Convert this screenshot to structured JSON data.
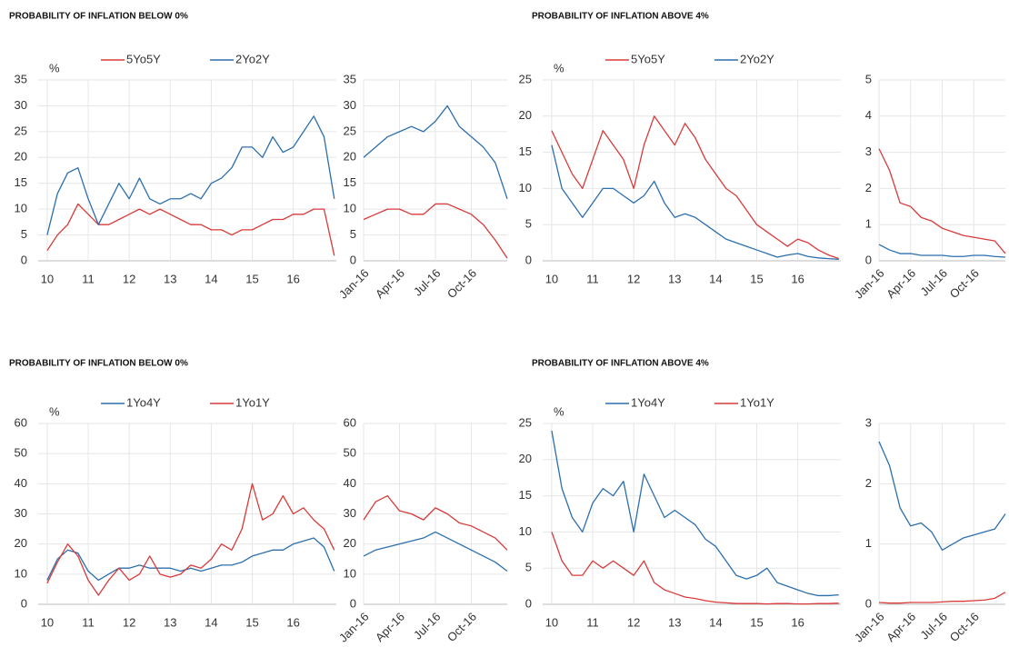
{
  "chart_data": [
    {
      "type": "line",
      "title": "PROBABILITY OF INFLATION BELOW 0%",
      "y_label": "%",
      "legend": "top",
      "grid": true,
      "x": [
        10,
        10.25,
        10.5,
        10.75,
        11,
        11.25,
        11.5,
        11.75,
        12,
        12.25,
        12.5,
        12.75,
        13,
        13.25,
        13.5,
        13.75,
        14,
        14.25,
        14.5,
        14.75,
        15,
        15.25,
        15.5,
        15.75,
        16,
        16.25,
        16.5,
        16.75,
        17
      ],
      "xlim": [
        9.78,
        17.05
      ],
      "xticks": [
        10,
        11,
        12,
        13,
        14,
        15,
        16
      ],
      "ylim": [
        0,
        35
      ],
      "yticks": [
        0,
        5,
        10,
        15,
        20,
        25,
        30,
        35
      ],
      "series": [
        {
          "name": "5Yo5Y",
          "color": "#d93a3a",
          "values": [
            2,
            5,
            7,
            11,
            9,
            7,
            7,
            8,
            9,
            10,
            9,
            10,
            9,
            8,
            7,
            7,
            6,
            6,
            5,
            6,
            6,
            7,
            8,
            8,
            9,
            9,
            10,
            10,
            1
          ]
        },
        {
          "name": "2Yo2Y",
          "color": "#2c6fad",
          "values": [
            5,
            13,
            17,
            18,
            12,
            7,
            11,
            15,
            12,
            16,
            12,
            11,
            12,
            12,
            13,
            12,
            15,
            16,
            18,
            22,
            22,
            20,
            24,
            21,
            22,
            25,
            28,
            24,
            12
          ]
        }
      ]
    },
    {
      "type": "line",
      "grid": true,
      "x": [
        0,
        1,
        2,
        3,
        4,
        5,
        6,
        7,
        8,
        9,
        10,
        11,
        12
      ],
      "xlim": [
        0,
        12
      ],
      "xticks": [
        {
          "value": 0,
          "label": "Jan-16"
        },
        {
          "value": 3,
          "label": "Apr-16"
        },
        {
          "value": 6,
          "label": "Jul-16"
        },
        {
          "value": 9,
          "label": "Oct-16"
        }
      ],
      "ylim": [
        0,
        35
      ],
      "yticks": [
        0,
        5,
        10,
        15,
        20,
        25,
        30,
        35
      ],
      "series": [
        {
          "color": "#d93a3a",
          "values": [
            8,
            9,
            10,
            10,
            9,
            9,
            11,
            11,
            10,
            9,
            7,
            4,
            0.5
          ]
        },
        {
          "color": "#2c6fad",
          "values": [
            20,
            22,
            24,
            25,
            26,
            25,
            27,
            30,
            26,
            24,
            22,
            19,
            12
          ]
        }
      ]
    },
    {
      "type": "line",
      "title": "PROBABILITY OF INFLATION ABOVE 4%",
      "y_label": "%",
      "legend": "top",
      "grid": true,
      "x": [
        10,
        10.25,
        10.5,
        10.75,
        11,
        11.25,
        11.5,
        11.75,
        12,
        12.25,
        12.5,
        12.75,
        13,
        13.25,
        13.5,
        13.75,
        14,
        14.25,
        14.5,
        14.75,
        15,
        15.25,
        15.5,
        15.75,
        16,
        16.25,
        16.5,
        16.75,
        17
      ],
      "xlim": [
        9.78,
        17.05
      ],
      "xticks": [
        10,
        11,
        12,
        13,
        14,
        15,
        16
      ],
      "ylim": [
        0,
        25
      ],
      "yticks": [
        0,
        5,
        10,
        15,
        20,
        25
      ],
      "series": [
        {
          "name": "5Yo5Y",
          "color": "#d93a3a",
          "values": [
            18,
            15,
            12,
            10,
            14,
            18,
            16,
            14,
            10,
            16,
            20,
            18,
            16,
            19,
            17,
            14,
            12,
            10,
            9,
            7,
            5,
            4,
            3,
            2,
            3,
            2.5,
            1.5,
            0.8,
            0.3
          ]
        },
        {
          "name": "2Yo2Y",
          "color": "#2c6fad",
          "values": [
            16,
            10,
            8,
            6,
            8,
            10,
            10,
            9,
            8,
            9,
            11,
            8,
            6,
            6.5,
            6,
            5,
            4,
            3,
            2.5,
            2,
            1.5,
            1,
            0.5,
            0.8,
            1,
            0.6,
            0.4,
            0.3,
            0.2
          ]
        }
      ]
    },
    {
      "type": "line",
      "grid": true,
      "x": [
        0,
        1,
        2,
        3,
        4,
        5,
        6,
        7,
        8,
        9,
        10,
        11,
        12
      ],
      "xlim": [
        0,
        12
      ],
      "xticks": [
        {
          "value": 0,
          "label": "Jan-16"
        },
        {
          "value": 3,
          "label": "Apr-16"
        },
        {
          "value": 6,
          "label": "Jul-16"
        },
        {
          "value": 9,
          "label": "Oct-16"
        }
      ],
      "ylim": [
        0,
        5
      ],
      "yticks": [
        0,
        1,
        2,
        3,
        4,
        5
      ],
      "series": [
        {
          "color": "#d93a3a",
          "values": [
            3.1,
            2.5,
            1.6,
            1.5,
            1.2,
            1.1,
            0.9,
            0.8,
            0.7,
            0.65,
            0.6,
            0.55,
            0.2
          ]
        },
        {
          "color": "#2c6fad",
          "values": [
            0.45,
            0.3,
            0.2,
            0.2,
            0.15,
            0.15,
            0.15,
            0.12,
            0.12,
            0.15,
            0.15,
            0.12,
            0.1
          ]
        }
      ]
    },
    {
      "type": "line",
      "title": "PROBABILITY OF INFLATION BELOW 0%",
      "y_label": "%",
      "legend": "top",
      "grid": true,
      "x": [
        10,
        10.25,
        10.5,
        10.75,
        11,
        11.25,
        11.5,
        11.75,
        12,
        12.25,
        12.5,
        12.75,
        13,
        13.25,
        13.5,
        13.75,
        14,
        14.25,
        14.5,
        14.75,
        15,
        15.25,
        15.5,
        15.75,
        16,
        16.25,
        16.5,
        16.75,
        17
      ],
      "xlim": [
        9.78,
        17.05
      ],
      "xticks": [
        10,
        11,
        12,
        13,
        14,
        15,
        16
      ],
      "ylim": [
        0,
        60
      ],
      "yticks": [
        0,
        10,
        20,
        30,
        40,
        50,
        60
      ],
      "series": [
        {
          "name": "1Yo4Y",
          "color": "#2c6fad",
          "values": [
            8,
            15,
            18,
            17,
            11,
            8,
            10,
            12,
            12,
            13,
            12,
            12,
            12,
            11,
            12,
            11,
            12,
            13,
            13,
            14,
            16,
            17,
            18,
            18,
            20,
            21,
            22,
            19,
            11
          ]
        },
        {
          "name": "1Yo1Y",
          "color": "#d93a3a",
          "values": [
            7,
            14,
            20,
            16,
            8,
            3,
            8,
            12,
            8,
            10,
            16,
            10,
            9,
            10,
            13,
            12,
            15,
            20,
            18,
            25,
            40,
            28,
            30,
            36,
            30,
            32,
            28,
            25,
            18
          ]
        }
      ]
    },
    {
      "type": "line",
      "grid": true,
      "x": [
        0,
        1,
        2,
        3,
        4,
        5,
        6,
        7,
        8,
        9,
        10,
        11,
        12
      ],
      "xlim": [
        0,
        12
      ],
      "xticks": [
        {
          "value": 0,
          "label": "Jan-16"
        },
        {
          "value": 3,
          "label": "Apr-16"
        },
        {
          "value": 6,
          "label": "Jul-16"
        },
        {
          "value": 9,
          "label": "Oct-16"
        }
      ],
      "ylim": [
        0,
        60
      ],
      "yticks": [
        0,
        10,
        20,
        30,
        40,
        50,
        60
      ],
      "series": [
        {
          "color": "#2c6fad",
          "values": [
            16,
            18,
            19,
            20,
            21,
            22,
            24,
            22,
            20,
            18,
            16,
            14,
            11
          ]
        },
        {
          "color": "#d93a3a",
          "values": [
            28,
            34,
            36,
            31,
            30,
            28,
            32,
            30,
            27,
            26,
            24,
            22,
            18
          ]
        }
      ]
    },
    {
      "type": "line",
      "title": "PROBABILITY OF INFLATION ABOVE 4%",
      "y_label": "%",
      "legend": "top",
      "grid": true,
      "x": [
        10,
        10.25,
        10.5,
        10.75,
        11,
        11.25,
        11.5,
        11.75,
        12,
        12.25,
        12.5,
        12.75,
        13,
        13.25,
        13.5,
        13.75,
        14,
        14.25,
        14.5,
        14.75,
        15,
        15.25,
        15.5,
        15.75,
        16,
        16.25,
        16.5,
        16.75,
        17
      ],
      "xlim": [
        9.78,
        17.05
      ],
      "xticks": [
        10,
        11,
        12,
        13,
        14,
        15,
        16
      ],
      "ylim": [
        0,
        25
      ],
      "yticks": [
        0,
        5,
        10,
        15,
        20,
        25
      ],
      "series": [
        {
          "name": "1Yo4Y",
          "color": "#2c6fad",
          "values": [
            24,
            16,
            12,
            10,
            14,
            16,
            15,
            17,
            10,
            18,
            15,
            12,
            13,
            12,
            11,
            9,
            8,
            6,
            4,
            3.5,
            4,
            5,
            3,
            2.5,
            2,
            1.5,
            1.2,
            1.2,
            1.3
          ]
        },
        {
          "name": "1Yo1Y",
          "color": "#d93a3a",
          "values": [
            10,
            6,
            4,
            4,
            6,
            5,
            6,
            5,
            4,
            6,
            3,
            2,
            1.5,
            1,
            0.8,
            0.5,
            0.3,
            0.2,
            0.1,
            0.1,
            0.1,
            0.05,
            0.1,
            0.1,
            0.05,
            0.05,
            0.1,
            0.1,
            0.15
          ]
        }
      ]
    },
    {
      "type": "line",
      "grid": true,
      "x": [
        0,
        1,
        2,
        3,
        4,
        5,
        6,
        7,
        8,
        9,
        10,
        11,
        12
      ],
      "xlim": [
        0,
        12
      ],
      "xticks": [
        {
          "value": 0,
          "label": "Jan-16"
        },
        {
          "value": 3,
          "label": "Apr-16"
        },
        {
          "value": 6,
          "label": "Jul-16"
        },
        {
          "value": 9,
          "label": "Oct-16"
        }
      ],
      "ylim": [
        0,
        3
      ],
      "yticks": [
        0,
        1,
        2,
        3
      ],
      "series": [
        {
          "color": "#2c6fad",
          "values": [
            2.7,
            2.3,
            1.6,
            1.3,
            1.35,
            1.2,
            0.9,
            1.0,
            1.1,
            1.15,
            1.2,
            1.25,
            1.5
          ]
        },
        {
          "color": "#d93a3a",
          "values": [
            0.03,
            0.02,
            0.02,
            0.03,
            0.03,
            0.03,
            0.04,
            0.05,
            0.05,
            0.06,
            0.07,
            0.1,
            0.2
          ]
        }
      ]
    }
  ]
}
